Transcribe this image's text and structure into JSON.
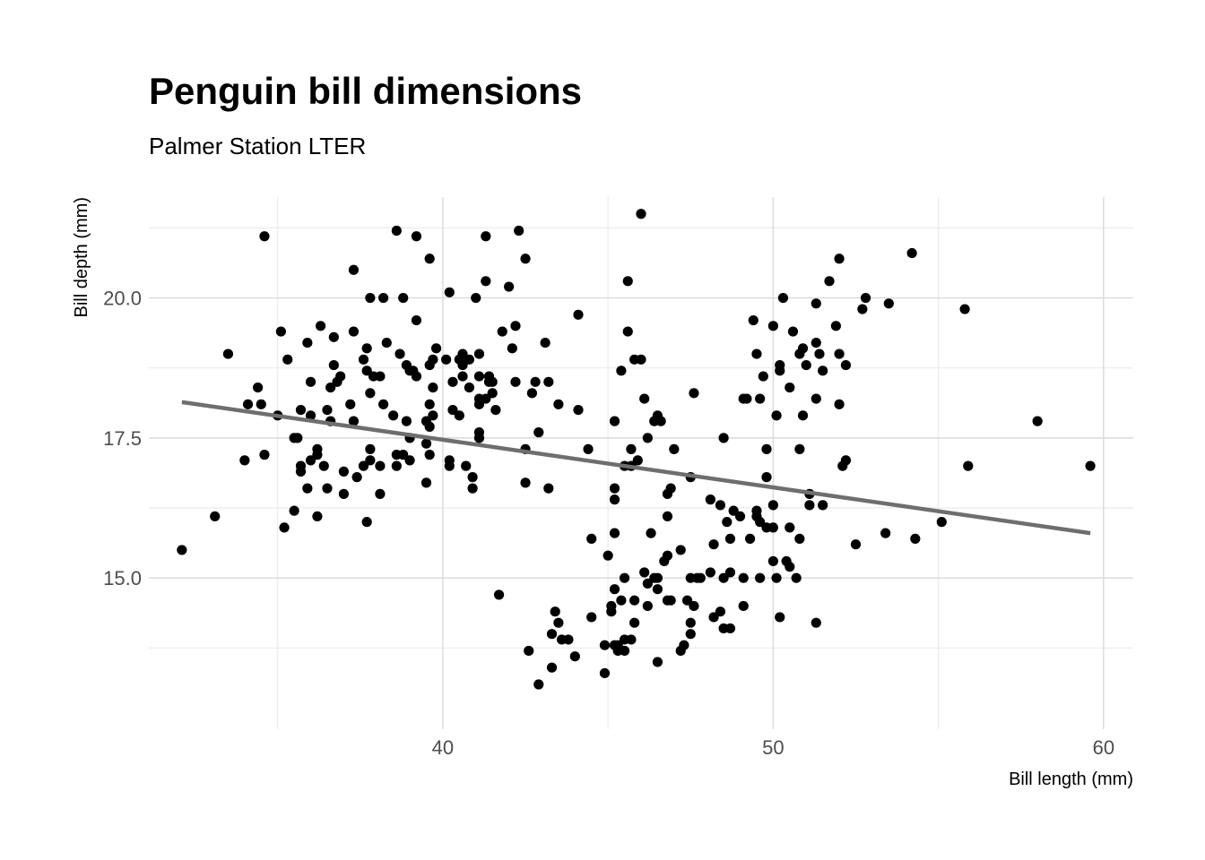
{
  "chart_data": {
    "type": "scatter",
    "title": "Penguin bill dimensions",
    "subtitle": "Palmer Station LTER",
    "xlabel": "Bill length (mm)",
    "ylabel": "Bill depth (mm)",
    "xlim": [
      31.1,
      60.9
    ],
    "ylim": [
      12.3,
      21.8
    ],
    "xticks": [
      40,
      50,
      60
    ],
    "xtick_labels": [
      "40",
      "50",
      "60"
    ],
    "yticks": [
      15,
      17.5,
      20
    ],
    "ytick_labels": [
      "15.0",
      "17.5",
      "20.0"
    ],
    "grid": true,
    "point_color": "#000000",
    "trend_color": "#6e6e6e",
    "trend_line": {
      "x": [
        32.1,
        59.6
      ],
      "y": [
        18.14,
        15.8
      ]
    },
    "points": [
      [
        32.1,
        15.5
      ],
      [
        33.1,
        16.1
      ],
      [
        33.5,
        19.0
      ],
      [
        34.0,
        17.1
      ],
      [
        34.1,
        18.1
      ],
      [
        34.4,
        18.4
      ],
      [
        34.5,
        18.1
      ],
      [
        34.6,
        21.1
      ],
      [
        34.6,
        17.2
      ],
      [
        35.0,
        17.9
      ],
      [
        35.1,
        19.4
      ],
      [
        35.2,
        15.9
      ],
      [
        35.3,
        18.9
      ],
      [
        35.5,
        17.5
      ],
      [
        35.5,
        16.2
      ],
      [
        35.6,
        17.5
      ],
      [
        35.7,
        16.9
      ],
      [
        35.7,
        17.0
      ],
      [
        35.7,
        18.0
      ],
      [
        35.9,
        16.6
      ],
      [
        35.9,
        19.2
      ],
      [
        36.0,
        17.1
      ],
      [
        36.0,
        17.9
      ],
      [
        36.0,
        18.5
      ],
      [
        36.2,
        17.3
      ],
      [
        36.2,
        17.2
      ],
      [
        36.2,
        16.1
      ],
      [
        36.3,
        19.5
      ],
      [
        36.4,
        17.0
      ],
      [
        36.5,
        18.0
      ],
      [
        36.5,
        16.6
      ],
      [
        36.6,
        17.8
      ],
      [
        36.6,
        18.4
      ],
      [
        36.7,
        19.3
      ],
      [
        36.7,
        18.8
      ],
      [
        36.8,
        18.5
      ],
      [
        36.9,
        18.6
      ],
      [
        37.0,
        16.9
      ],
      [
        37.0,
        16.5
      ],
      [
        37.2,
        18.1
      ],
      [
        37.3,
        20.5
      ],
      [
        37.3,
        19.4
      ],
      [
        37.3,
        17.8
      ],
      [
        37.4,
        16.8
      ],
      [
        37.6,
        18.9
      ],
      [
        37.6,
        17.0
      ],
      [
        37.7,
        18.7
      ],
      [
        37.7,
        19.1
      ],
      [
        37.7,
        16.0
      ],
      [
        37.8,
        18.3
      ],
      [
        37.8,
        20.0
      ],
      [
        37.8,
        17.3
      ],
      [
        37.8,
        17.1
      ],
      [
        37.9,
        18.6
      ],
      [
        38.1,
        18.6
      ],
      [
        38.1,
        16.5
      ],
      [
        38.1,
        17.0
      ],
      [
        38.2,
        18.1
      ],
      [
        38.2,
        20.0
      ],
      [
        38.3,
        19.2
      ],
      [
        38.5,
        17.9
      ],
      [
        38.6,
        21.2
      ],
      [
        38.6,
        17.2
      ],
      [
        38.6,
        17.0
      ],
      [
        38.7,
        19.0
      ],
      [
        38.8,
        17.2
      ],
      [
        38.8,
        20.0
      ],
      [
        38.9,
        18.8
      ],
      [
        38.9,
        17.8
      ],
      [
        39.0,
        18.7
      ],
      [
        39.0,
        17.5
      ],
      [
        39.0,
        17.1
      ],
      [
        39.1,
        18.7
      ],
      [
        39.2,
        19.6
      ],
      [
        39.2,
        21.1
      ],
      [
        39.2,
        18.6
      ],
      [
        39.5,
        17.4
      ],
      [
        39.5,
        16.7
      ],
      [
        39.5,
        17.8
      ],
      [
        39.6,
        18.8
      ],
      [
        39.6,
        17.7
      ],
      [
        39.6,
        17.2
      ],
      [
        39.6,
        20.7
      ],
      [
        39.6,
        18.1
      ],
      [
        39.7,
        18.4
      ],
      [
        39.7,
        17.9
      ],
      [
        39.7,
        18.9
      ],
      [
        39.8,
        19.1
      ],
      [
        40.1,
        18.9
      ],
      [
        40.2,
        17.0
      ],
      [
        40.2,
        20.1
      ],
      [
        40.2,
        17.1
      ],
      [
        40.3,
        18.5
      ],
      [
        40.3,
        18.0
      ],
      [
        40.5,
        17.9
      ],
      [
        40.5,
        18.9
      ],
      [
        40.6,
        18.8
      ],
      [
        40.6,
        19.0
      ],
      [
        40.6,
        18.6
      ],
      [
        40.7,
        17.0
      ],
      [
        40.8,
        18.9
      ],
      [
        40.8,
        18.4
      ],
      [
        40.9,
        16.8
      ],
      [
        40.9,
        16.6
      ],
      [
        41.0,
        20.0
      ],
      [
        41.1,
        17.5
      ],
      [
        41.1,
        18.2
      ],
      [
        41.1,
        19.0
      ],
      [
        41.1,
        18.6
      ],
      [
        41.1,
        17.6
      ],
      [
        41.1,
        18.1
      ],
      [
        41.3,
        18.2
      ],
      [
        41.3,
        20.3
      ],
      [
        41.3,
        21.1
      ],
      [
        41.4,
        18.5
      ],
      [
        41.4,
        18.6
      ],
      [
        41.5,
        18.3
      ],
      [
        41.5,
        18.5
      ],
      [
        41.6,
        18.0
      ],
      [
        41.7,
        14.7
      ],
      [
        41.8,
        19.4
      ],
      [
        42.0,
        20.2
      ],
      [
        42.1,
        19.1
      ],
      [
        42.2,
        18.5
      ],
      [
        42.2,
        19.5
      ],
      [
        42.3,
        21.2
      ],
      [
        42.5,
        20.7
      ],
      [
        42.5,
        17.3
      ],
      [
        42.5,
        16.7
      ],
      [
        42.6,
        13.7
      ],
      [
        42.7,
        18.3
      ],
      [
        42.8,
        18.5
      ],
      [
        42.9,
        17.6
      ],
      [
        42.9,
        13.1
      ],
      [
        43.1,
        19.2
      ],
      [
        43.2,
        18.5
      ],
      [
        43.2,
        16.6
      ],
      [
        43.3,
        13.4
      ],
      [
        43.3,
        14.0
      ],
      [
        43.4,
        14.4
      ],
      [
        43.5,
        14.2
      ],
      [
        43.5,
        18.1
      ],
      [
        43.6,
        13.9
      ],
      [
        43.8,
        13.9
      ],
      [
        44.0,
        13.6
      ],
      [
        44.1,
        18.0
      ],
      [
        44.1,
        19.7
      ],
      [
        44.4,
        17.3
      ],
      [
        44.5,
        15.7
      ],
      [
        44.5,
        14.3
      ],
      [
        44.9,
        13.3
      ],
      [
        44.9,
        13.8
      ],
      [
        45.0,
        15.4
      ],
      [
        45.1,
        14.5
      ],
      [
        45.1,
        14.4
      ],
      [
        45.2,
        16.6
      ],
      [
        45.2,
        15.8
      ],
      [
        45.2,
        14.8
      ],
      [
        45.2,
        13.8
      ],
      [
        45.2,
        16.4
      ],
      [
        45.2,
        17.8
      ],
      [
        45.3,
        13.8
      ],
      [
        45.3,
        13.7
      ],
      [
        45.4,
        14.6
      ],
      [
        45.4,
        18.7
      ],
      [
        45.5,
        13.7
      ],
      [
        45.5,
        13.9
      ],
      [
        45.5,
        15.0
      ],
      [
        45.5,
        17.0
      ],
      [
        45.6,
        19.4
      ],
      [
        45.6,
        20.3
      ],
      [
        45.7,
        13.9
      ],
      [
        45.7,
        17.3
      ],
      [
        45.7,
        17.0
      ],
      [
        45.8,
        14.6
      ],
      [
        45.8,
        14.2
      ],
      [
        45.8,
        18.9
      ],
      [
        45.9,
        17.1
      ],
      [
        46.0,
        21.5
      ],
      [
        46.0,
        18.9
      ],
      [
        46.1,
        15.1
      ],
      [
        46.1,
        18.2
      ],
      [
        46.2,
        14.5
      ],
      [
        46.2,
        14.9
      ],
      [
        46.2,
        17.5
      ],
      [
        46.3,
        15.8
      ],
      [
        46.4,
        15.0
      ],
      [
        46.4,
        17.8
      ],
      [
        46.5,
        14.8
      ],
      [
        46.5,
        13.5
      ],
      [
        46.5,
        15.0
      ],
      [
        46.5,
        17.9
      ],
      [
        46.6,
        17.8
      ],
      [
        46.7,
        15.3
      ],
      [
        46.8,
        14.6
      ],
      [
        46.8,
        15.4
      ],
      [
        46.8,
        16.1
      ],
      [
        46.8,
        16.5
      ],
      [
        46.9,
        14.6
      ],
      [
        46.9,
        16.6
      ],
      [
        47.0,
        17.3
      ],
      [
        47.2,
        13.7
      ],
      [
        47.2,
        15.5
      ],
      [
        47.3,
        13.8
      ],
      [
        47.4,
        14.6
      ],
      [
        47.5,
        14.0
      ],
      [
        47.5,
        14.2
      ],
      [
        47.5,
        15.0
      ],
      [
        47.5,
        16.8
      ],
      [
        47.6,
        14.5
      ],
      [
        47.6,
        18.3
      ],
      [
        47.7,
        15.0
      ],
      [
        47.8,
        15.0
      ],
      [
        48.1,
        16.4
      ],
      [
        48.1,
        15.1
      ],
      [
        48.2,
        14.3
      ],
      [
        48.2,
        15.6
      ],
      [
        48.4,
        14.4
      ],
      [
        48.4,
        16.3
      ],
      [
        48.5,
        15.0
      ],
      [
        48.5,
        17.5
      ],
      [
        48.5,
        14.1
      ],
      [
        48.6,
        16.0
      ],
      [
        48.7,
        14.1
      ],
      [
        48.7,
        15.1
      ],
      [
        48.7,
        15.7
      ],
      [
        48.8,
        16.2
      ],
      [
        49.0,
        16.1
      ],
      [
        49.1,
        15.0
      ],
      [
        49.1,
        14.5
      ],
      [
        49.1,
        18.2
      ],
      [
        49.2,
        18.2
      ],
      [
        49.3,
        15.7
      ],
      [
        49.4,
        19.6
      ],
      [
        49.5,
        19.0
      ],
      [
        49.5,
        16.1
      ],
      [
        49.5,
        16.2
      ],
      [
        49.6,
        16.0
      ],
      [
        49.6,
        18.2
      ],
      [
        49.6,
        15.0
      ],
      [
        49.7,
        18.6
      ],
      [
        49.8,
        15.9
      ],
      [
        49.8,
        16.8
      ],
      [
        49.8,
        17.3
      ],
      [
        50.0,
        16.3
      ],
      [
        50.0,
        15.3
      ],
      [
        50.0,
        15.9
      ],
      [
        50.0,
        19.5
      ],
      [
        50.1,
        15.0
      ],
      [
        50.1,
        17.9
      ],
      [
        50.2,
        14.3
      ],
      [
        50.2,
        18.8
      ],
      [
        50.2,
        18.7
      ],
      [
        50.3,
        20.0
      ],
      [
        50.4,
        15.3
      ],
      [
        50.5,
        15.2
      ],
      [
        50.5,
        15.9
      ],
      [
        50.5,
        18.4
      ],
      [
        50.6,
        19.4
      ],
      [
        50.7,
        15.0
      ],
      [
        50.8,
        15.7
      ],
      [
        50.8,
        19.0
      ],
      [
        50.8,
        17.3
      ],
      [
        50.9,
        17.9
      ],
      [
        50.9,
        19.1
      ],
      [
        51.0,
        18.8
      ],
      [
        51.1,
        16.5
      ],
      [
        51.1,
        16.3
      ],
      [
        51.3,
        19.9
      ],
      [
        51.3,
        19.2
      ],
      [
        51.3,
        14.2
      ],
      [
        51.3,
        18.2
      ],
      [
        51.4,
        19.0
      ],
      [
        51.5,
        16.3
      ],
      [
        51.5,
        18.7
      ],
      [
        51.7,
        20.3
      ],
      [
        51.9,
        19.5
      ],
      [
        52.0,
        18.1
      ],
      [
        52.0,
        19.0
      ],
      [
        52.0,
        20.7
      ],
      [
        52.1,
        17.0
      ],
      [
        52.2,
        17.1
      ],
      [
        52.2,
        18.8
      ],
      [
        52.5,
        15.6
      ],
      [
        52.7,
        19.8
      ],
      [
        52.8,
        20.0
      ],
      [
        53.5,
        19.9
      ],
      [
        53.4,
        15.8
      ],
      [
        54.2,
        20.8
      ],
      [
        54.3,
        15.7
      ],
      [
        55.1,
        16.0
      ],
      [
        55.8,
        19.8
      ],
      [
        55.9,
        17.0
      ],
      [
        58.0,
        17.8
      ],
      [
        59.6,
        17.0
      ]
    ]
  }
}
